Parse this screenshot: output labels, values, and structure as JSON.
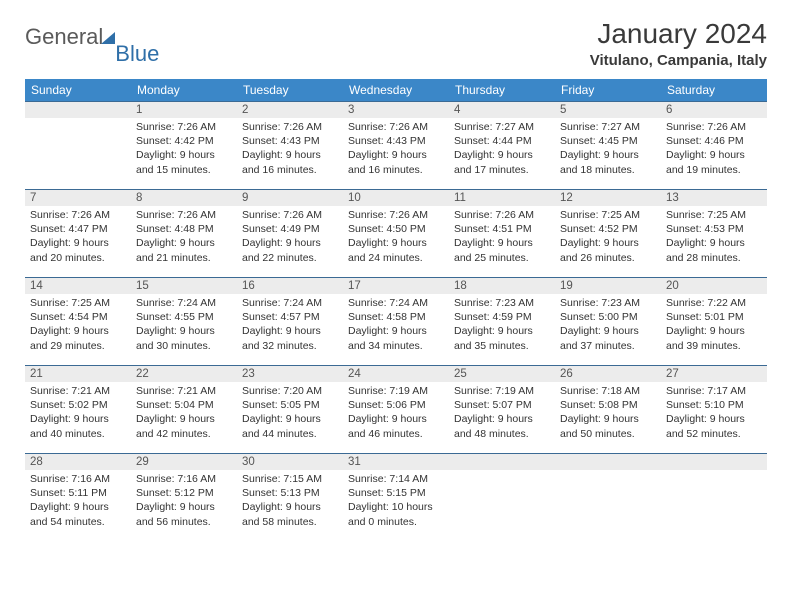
{
  "brand": {
    "part1": "General",
    "part2": "Blue"
  },
  "title": "January 2024",
  "location": "Vitulano, Campania, Italy",
  "colors": {
    "header_bg": "#3b87c8",
    "header_text": "#ffffff",
    "daynum_bg": "#ececec",
    "cell_border": "#3b6a94",
    "brand_gray": "#5a5a5a",
    "brand_blue": "#2f6fa8",
    "body_text": "#333333"
  },
  "weekdays": [
    "Sunday",
    "Monday",
    "Tuesday",
    "Wednesday",
    "Thursday",
    "Friday",
    "Saturday"
  ],
  "weeks": [
    [
      {
        "n": "",
        "sr": "",
        "ss": "",
        "d1": "",
        "d2": ""
      },
      {
        "n": "1",
        "sr": "Sunrise: 7:26 AM",
        "ss": "Sunset: 4:42 PM",
        "d1": "Daylight: 9 hours",
        "d2": "and 15 minutes."
      },
      {
        "n": "2",
        "sr": "Sunrise: 7:26 AM",
        "ss": "Sunset: 4:43 PM",
        "d1": "Daylight: 9 hours",
        "d2": "and 16 minutes."
      },
      {
        "n": "3",
        "sr": "Sunrise: 7:26 AM",
        "ss": "Sunset: 4:43 PM",
        "d1": "Daylight: 9 hours",
        "d2": "and 16 minutes."
      },
      {
        "n": "4",
        "sr": "Sunrise: 7:27 AM",
        "ss": "Sunset: 4:44 PM",
        "d1": "Daylight: 9 hours",
        "d2": "and 17 minutes."
      },
      {
        "n": "5",
        "sr": "Sunrise: 7:27 AM",
        "ss": "Sunset: 4:45 PM",
        "d1": "Daylight: 9 hours",
        "d2": "and 18 minutes."
      },
      {
        "n": "6",
        "sr": "Sunrise: 7:26 AM",
        "ss": "Sunset: 4:46 PM",
        "d1": "Daylight: 9 hours",
        "d2": "and 19 minutes."
      }
    ],
    [
      {
        "n": "7",
        "sr": "Sunrise: 7:26 AM",
        "ss": "Sunset: 4:47 PM",
        "d1": "Daylight: 9 hours",
        "d2": "and 20 minutes."
      },
      {
        "n": "8",
        "sr": "Sunrise: 7:26 AM",
        "ss": "Sunset: 4:48 PM",
        "d1": "Daylight: 9 hours",
        "d2": "and 21 minutes."
      },
      {
        "n": "9",
        "sr": "Sunrise: 7:26 AM",
        "ss": "Sunset: 4:49 PM",
        "d1": "Daylight: 9 hours",
        "d2": "and 22 minutes."
      },
      {
        "n": "10",
        "sr": "Sunrise: 7:26 AM",
        "ss": "Sunset: 4:50 PM",
        "d1": "Daylight: 9 hours",
        "d2": "and 24 minutes."
      },
      {
        "n": "11",
        "sr": "Sunrise: 7:26 AM",
        "ss": "Sunset: 4:51 PM",
        "d1": "Daylight: 9 hours",
        "d2": "and 25 minutes."
      },
      {
        "n": "12",
        "sr": "Sunrise: 7:25 AM",
        "ss": "Sunset: 4:52 PM",
        "d1": "Daylight: 9 hours",
        "d2": "and 26 minutes."
      },
      {
        "n": "13",
        "sr": "Sunrise: 7:25 AM",
        "ss": "Sunset: 4:53 PM",
        "d1": "Daylight: 9 hours",
        "d2": "and 28 minutes."
      }
    ],
    [
      {
        "n": "14",
        "sr": "Sunrise: 7:25 AM",
        "ss": "Sunset: 4:54 PM",
        "d1": "Daylight: 9 hours",
        "d2": "and 29 minutes."
      },
      {
        "n": "15",
        "sr": "Sunrise: 7:24 AM",
        "ss": "Sunset: 4:55 PM",
        "d1": "Daylight: 9 hours",
        "d2": "and 30 minutes."
      },
      {
        "n": "16",
        "sr": "Sunrise: 7:24 AM",
        "ss": "Sunset: 4:57 PM",
        "d1": "Daylight: 9 hours",
        "d2": "and 32 minutes."
      },
      {
        "n": "17",
        "sr": "Sunrise: 7:24 AM",
        "ss": "Sunset: 4:58 PM",
        "d1": "Daylight: 9 hours",
        "d2": "and 34 minutes."
      },
      {
        "n": "18",
        "sr": "Sunrise: 7:23 AM",
        "ss": "Sunset: 4:59 PM",
        "d1": "Daylight: 9 hours",
        "d2": "and 35 minutes."
      },
      {
        "n": "19",
        "sr": "Sunrise: 7:23 AM",
        "ss": "Sunset: 5:00 PM",
        "d1": "Daylight: 9 hours",
        "d2": "and 37 minutes."
      },
      {
        "n": "20",
        "sr": "Sunrise: 7:22 AM",
        "ss": "Sunset: 5:01 PM",
        "d1": "Daylight: 9 hours",
        "d2": "and 39 minutes."
      }
    ],
    [
      {
        "n": "21",
        "sr": "Sunrise: 7:21 AM",
        "ss": "Sunset: 5:02 PM",
        "d1": "Daylight: 9 hours",
        "d2": "and 40 minutes."
      },
      {
        "n": "22",
        "sr": "Sunrise: 7:21 AM",
        "ss": "Sunset: 5:04 PM",
        "d1": "Daylight: 9 hours",
        "d2": "and 42 minutes."
      },
      {
        "n": "23",
        "sr": "Sunrise: 7:20 AM",
        "ss": "Sunset: 5:05 PM",
        "d1": "Daylight: 9 hours",
        "d2": "and 44 minutes."
      },
      {
        "n": "24",
        "sr": "Sunrise: 7:19 AM",
        "ss": "Sunset: 5:06 PM",
        "d1": "Daylight: 9 hours",
        "d2": "and 46 minutes."
      },
      {
        "n": "25",
        "sr": "Sunrise: 7:19 AM",
        "ss": "Sunset: 5:07 PM",
        "d1": "Daylight: 9 hours",
        "d2": "and 48 minutes."
      },
      {
        "n": "26",
        "sr": "Sunrise: 7:18 AM",
        "ss": "Sunset: 5:08 PM",
        "d1": "Daylight: 9 hours",
        "d2": "and 50 minutes."
      },
      {
        "n": "27",
        "sr": "Sunrise: 7:17 AM",
        "ss": "Sunset: 5:10 PM",
        "d1": "Daylight: 9 hours",
        "d2": "and 52 minutes."
      }
    ],
    [
      {
        "n": "28",
        "sr": "Sunrise: 7:16 AM",
        "ss": "Sunset: 5:11 PM",
        "d1": "Daylight: 9 hours",
        "d2": "and 54 minutes."
      },
      {
        "n": "29",
        "sr": "Sunrise: 7:16 AM",
        "ss": "Sunset: 5:12 PM",
        "d1": "Daylight: 9 hours",
        "d2": "and 56 minutes."
      },
      {
        "n": "30",
        "sr": "Sunrise: 7:15 AM",
        "ss": "Sunset: 5:13 PM",
        "d1": "Daylight: 9 hours",
        "d2": "and 58 minutes."
      },
      {
        "n": "31",
        "sr": "Sunrise: 7:14 AM",
        "ss": "Sunset: 5:15 PM",
        "d1": "Daylight: 10 hours",
        "d2": "and 0 minutes."
      },
      {
        "n": "",
        "sr": "",
        "ss": "",
        "d1": "",
        "d2": ""
      },
      {
        "n": "",
        "sr": "",
        "ss": "",
        "d1": "",
        "d2": ""
      },
      {
        "n": "",
        "sr": "",
        "ss": "",
        "d1": "",
        "d2": ""
      }
    ]
  ]
}
